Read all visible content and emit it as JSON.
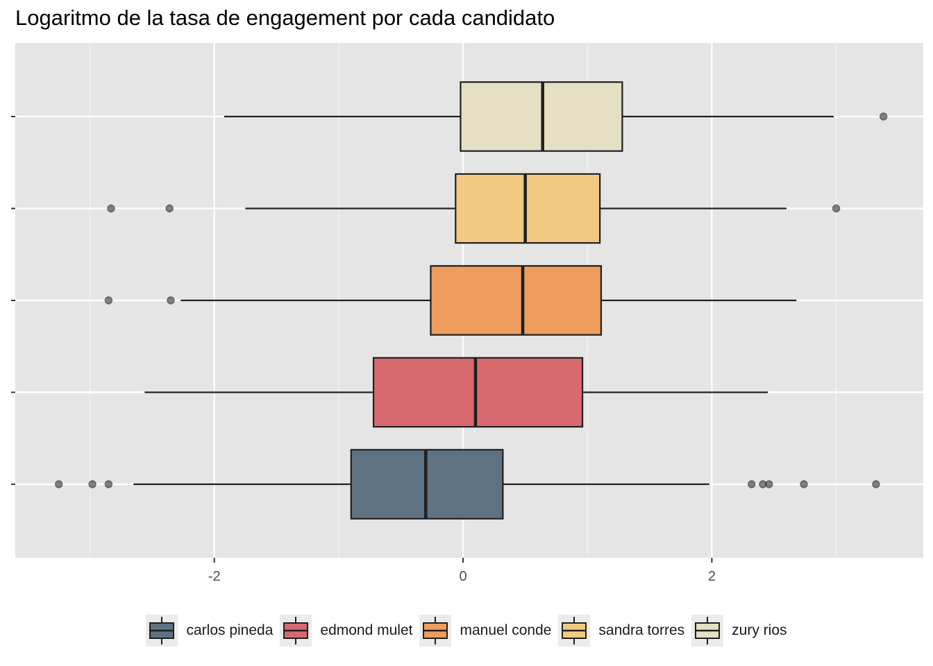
{
  "chart_data": {
    "type": "boxplot",
    "title": "Logaritmo de la tasa de engagement por cada candidato",
    "xlabel": "",
    "ylabel": "",
    "x_ticks": [
      -2,
      0,
      2
    ],
    "xlim": [
      -3.6,
      3.7
    ],
    "grid": true,
    "legend_position": "bottom",
    "series": [
      {
        "name": "carlos pineda",
        "color": "#5f7282",
        "whisker_low": -2.65,
        "q1": -0.9,
        "median": -0.3,
        "q3": 0.32,
        "whisker_high": 1.98,
        "outliers": [
          -3.25,
          -2.98,
          -2.85,
          2.32,
          2.41,
          2.46,
          2.74,
          3.32
        ]
      },
      {
        "name": "edmond mulet",
        "color": "#d8696f",
        "whisker_low": -2.56,
        "q1": -0.72,
        "median": 0.1,
        "q3": 0.96,
        "whisker_high": 2.45,
        "outliers": []
      },
      {
        "name": "manuel conde",
        "color": "#ee9d5e",
        "whisker_low": -2.27,
        "q1": -0.26,
        "median": 0.48,
        "q3": 1.11,
        "whisker_high": 2.68,
        "outliers": [
          -2.85,
          -2.35
        ]
      },
      {
        "name": "sandra torres",
        "color": "#f3c982",
        "whisker_low": -1.75,
        "q1": -0.06,
        "median": 0.5,
        "q3": 1.1,
        "whisker_high": 2.6,
        "outliers": [
          -2.83,
          -2.36,
          3.0
        ]
      },
      {
        "name": "zury rios",
        "color": "#e5dfc3",
        "whisker_low": -1.92,
        "q1": -0.02,
        "median": 0.64,
        "q3": 1.28,
        "whisker_high": 2.98,
        "outliers": [
          3.38
        ]
      }
    ]
  }
}
